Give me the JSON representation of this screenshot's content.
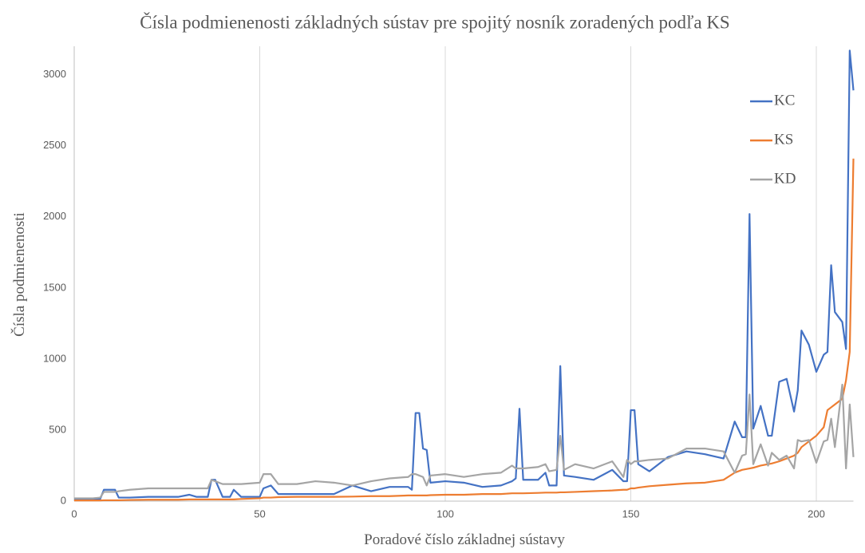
{
  "chart_data": {
    "type": "line",
    "title": "Čísla podmienenosti základných sústav pre spojitý nosník zoradených podľa KS",
    "x_label": "Poradové číslo základnej sústavy",
    "y_label": "Čísla podmienenosti",
    "x": [
      0,
      5,
      7,
      8,
      11,
      12,
      15,
      20,
      25,
      28,
      31,
      33,
      36,
      37,
      38,
      40,
      42,
      43,
      45,
      50,
      51,
      53,
      55,
      60,
      65,
      70,
      75,
      80,
      85,
      90,
      91,
      92,
      93,
      94,
      95,
      96,
      100,
      105,
      110,
      115,
      118,
      119,
      120,
      121,
      125,
      127,
      128,
      130,
      131,
      132,
      135,
      140,
      145,
      148,
      149,
      150,
      151,
      152,
      155,
      160,
      165,
      170,
      175,
      178,
      180,
      181,
      182,
      183,
      185,
      187,
      188,
      190,
      192,
      194,
      195,
      196,
      198,
      200,
      202,
      203,
      204,
      205,
      207,
      208,
      209,
      210
    ],
    "series": [
      {
        "name": "KC",
        "color": "#4472c4",
        "values": [
          15,
          15,
          15,
          80,
          80,
          25,
          25,
          30,
          30,
          30,
          45,
          30,
          30,
          150,
          150,
          30,
          30,
          80,
          30,
          30,
          90,
          110,
          50,
          50,
          50,
          50,
          110,
          70,
          100,
          100,
          80,
          620,
          620,
          370,
          360,
          130,
          140,
          130,
          100,
          110,
          140,
          160,
          650,
          150,
          150,
          200,
          110,
          110,
          950,
          180,
          170,
          150,
          220,
          140,
          140,
          640,
          640,
          260,
          210,
          310,
          350,
          330,
          300,
          560,
          450,
          450,
          2020,
          510,
          670,
          460,
          460,
          840,
          860,
          630,
          780,
          1200,
          1100,
          910,
          1030,
          1050,
          1660,
          1330,
          1260,
          1070,
          3170,
          2890
        ]
      },
      {
        "name": "KS",
        "color": "#ed7d31",
        "values": [
          5,
          5,
          5,
          6,
          6,
          6,
          8,
          10,
          10,
          10,
          12,
          12,
          12,
          12,
          12,
          12,
          12,
          12,
          15,
          20,
          25,
          25,
          28,
          30,
          30,
          30,
          32,
          35,
          35,
          40,
          40,
          40,
          40,
          40,
          40,
          42,
          45,
          45,
          50,
          50,
          55,
          55,
          55,
          55,
          58,
          60,
          60,
          60,
          62,
          62,
          65,
          70,
          75,
          80,
          80,
          90,
          90,
          95,
          105,
          115,
          125,
          130,
          150,
          200,
          220,
          225,
          230,
          235,
          250,
          260,
          265,
          280,
          300,
          320,
          340,
          380,
          420,
          460,
          520,
          640,
          660,
          680,
          720,
          850,
          1050,
          2410
        ]
      },
      {
        "name": "KD",
        "color": "#a5a5a5",
        "values": [
          20,
          20,
          25,
          65,
          65,
          70,
          80,
          90,
          90,
          90,
          90,
          90,
          90,
          150,
          140,
          120,
          120,
          120,
          120,
          130,
          190,
          190,
          120,
          120,
          140,
          130,
          110,
          140,
          160,
          170,
          190,
          190,
          180,
          170,
          110,
          180,
          190,
          170,
          190,
          200,
          250,
          230,
          230,
          230,
          240,
          260,
          210,
          220,
          460,
          220,
          260,
          230,
          280,
          170,
          290,
          260,
          280,
          280,
          290,
          300,
          370,
          370,
          350,
          200,
          320,
          330,
          750,
          260,
          400,
          250,
          340,
          290,
          320,
          230,
          430,
          420,
          430,
          270,
          420,
          430,
          580,
          380,
          820,
          230,
          680,
          310
        ]
      }
    ],
    "xlim": [
      0,
      210
    ],
    "xticks": [
      0,
      50,
      100,
      150,
      200
    ],
    "ylim": [
      0,
      3200
    ],
    "yticks": [
      0,
      500,
      1000,
      1500,
      2000,
      2500,
      3000
    ],
    "grid": "x",
    "legend": "top-right"
  }
}
